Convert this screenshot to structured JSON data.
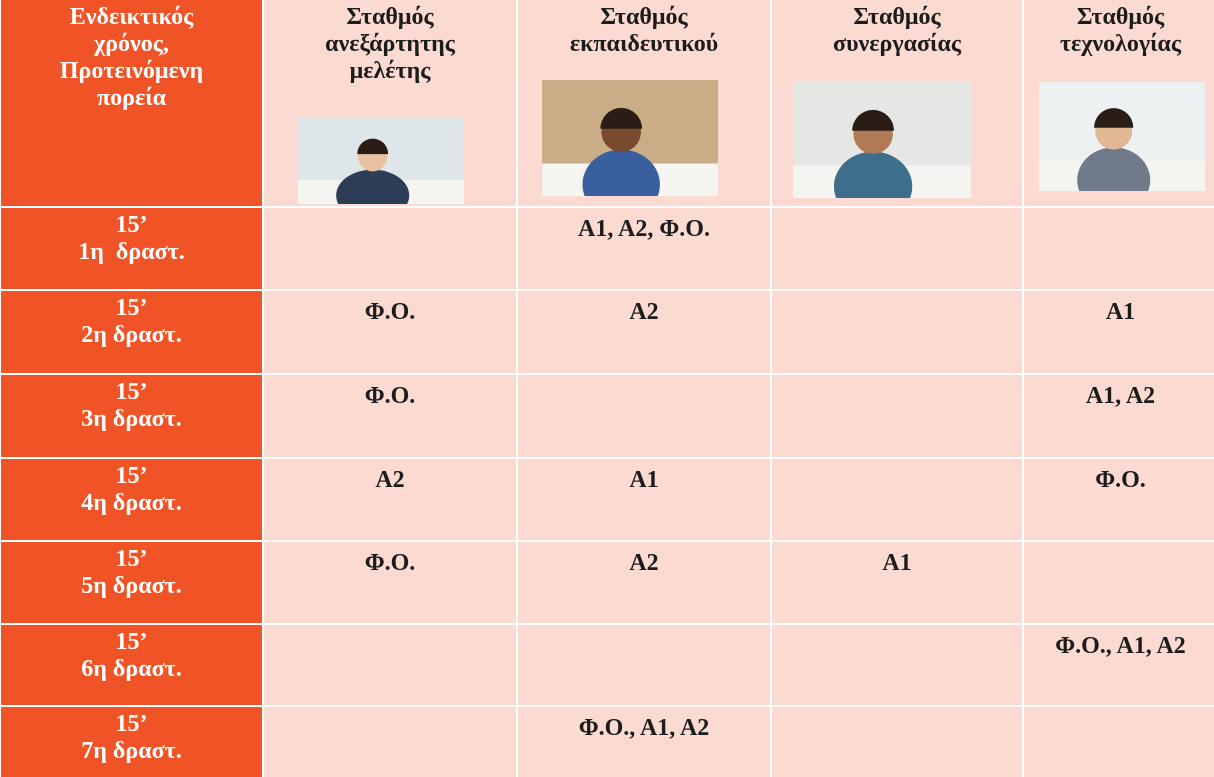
{
  "table": {
    "header": [
      {
        "lines": [
          "Ενδεικτικός",
          "χρόνος,",
          "Προτεινόμενη",
          "πορεία"
        ]
      },
      {
        "lines": [
          "Σταθμός",
          "ανεξάρτητης",
          "μελέτης"
        ]
      },
      {
        "lines": [
          "Σταθμός",
          "εκπαιδευτικού"
        ]
      },
      {
        "lines": [
          "Σταθμός",
          "συνεργασίας"
        ]
      },
      {
        "lines": [
          "Σταθμός",
          "τεχνολογίας"
        ]
      }
    ],
    "rows": [
      {
        "time": "15’",
        "activity": "1η  δραστ.",
        "cells": [
          null,
          "Α1, Α2, Φ.Ο.",
          null,
          null
        ]
      },
      {
        "time": "15’",
        "activity": "2η δραστ.",
        "cells": [
          "Φ.Ο.",
          "Α2",
          null,
          "Α1"
        ]
      },
      {
        "time": "15’",
        "activity": "3η δραστ.",
        "cells": [
          "Φ.Ο.",
          null,
          null,
          "Α1, Α2"
        ]
      },
      {
        "time": "15’",
        "activity": "4η δραστ.",
        "cells": [
          "Α2",
          "Α1",
          null,
          "Φ.Ο."
        ]
      },
      {
        "time": "15’",
        "activity": "5η δραστ.",
        "cells": [
          "Φ.Ο.",
          "Α2",
          "Α1",
          null
        ]
      },
      {
        "time": "15’",
        "activity": "6η δραστ.",
        "cells": [
          null,
          null,
          null,
          "Φ.Ο., Α1, Α2"
        ]
      },
      {
        "time": "15’",
        "activity": "7η δραστ.",
        "cells": [
          null,
          "Φ.Ο., Α1, Α2",
          null,
          null
        ]
      }
    ]
  }
}
